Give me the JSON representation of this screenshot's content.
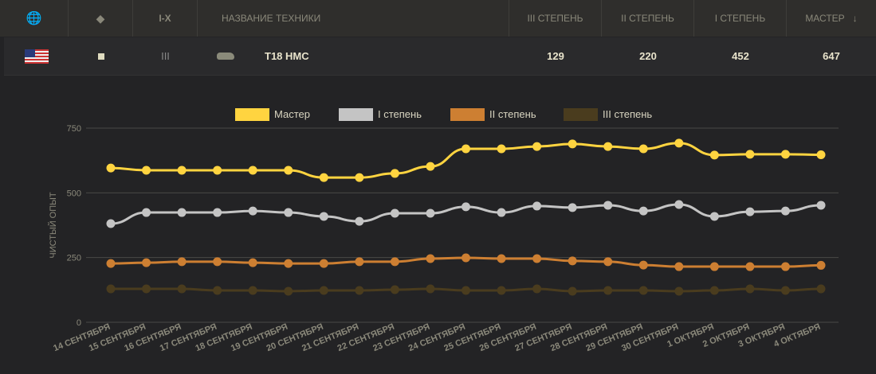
{
  "header": {
    "tier": "I-X",
    "name": "НАЗВАНИЕ ТЕХНИКИ",
    "c3": "III СТЕПЕНЬ",
    "c2": "II СТЕПЕНЬ",
    "c1": "I СТЕПЕНЬ",
    "master": "МАСТЕР",
    "sort_icon": "↓"
  },
  "vehicle": {
    "nation": "USA",
    "tier": "III",
    "name": "T18 HMC",
    "c3": "129",
    "c2": "220",
    "c1": "452",
    "master": "647"
  },
  "chart_data": {
    "type": "line",
    "ylabel": "ЧИСТЫЙ ОПЫТ",
    "ylim": [
      0,
      750
    ],
    "yticks": [
      0,
      250,
      500,
      750
    ],
    "grid": true,
    "legend": "top",
    "categories": [
      "14 СЕНТЯБРЯ",
      "15 СЕНТЯБРЯ",
      "16 СЕНТЯБРЯ",
      "17 СЕНТЯБРЯ",
      "18 СЕНТЯБРЯ",
      "19 СЕНТЯБРЯ",
      "20 СЕНТЯБРЯ",
      "21 СЕНТЯБРЯ",
      "22 СЕНТЯБРЯ",
      "23 СЕНТЯБРЯ",
      "24 СЕНТЯБРЯ",
      "25 СЕНТЯБРЯ",
      "26 СЕНТЯБРЯ",
      "27 СЕНТЯБРЯ",
      "28 СЕНТЯБРЯ",
      "29 СЕНТЯБРЯ",
      "30 СЕНТЯБРЯ",
      "1 ОКТЯБРЯ",
      "2 ОКТЯБРЯ",
      "3 ОКТЯБРЯ",
      "4 ОКТЯБРЯ"
    ],
    "series": [
      {
        "name": "Мастер",
        "color": "#ffd440",
        "values": [
          596,
          587,
          587,
          587,
          587,
          587,
          559,
          559,
          575,
          602,
          670,
          670,
          679,
          689,
          679,
          670,
          692,
          646,
          649,
          649,
          647
        ]
      },
      {
        "name": "I степень",
        "color": "#c4c4c4",
        "values": [
          381,
          424,
          424,
          424,
          430,
          424,
          409,
          390,
          421,
          421,
          446,
          424,
          449,
          443,
          452,
          430,
          455,
          409,
          427,
          430,
          452
        ]
      },
      {
        "name": "II степень",
        "color": "#cd7f32",
        "values": [
          227,
          230,
          234,
          234,
          230,
          227,
          227,
          234,
          234,
          246,
          249,
          246,
          246,
          237,
          234,
          221,
          215,
          215,
          215,
          215,
          220
        ]
      },
      {
        "name": "III степень",
        "color": "#4a3c1e",
        "values": [
          129,
          129,
          129,
          123,
          123,
          120,
          123,
          123,
          126,
          129,
          123,
          123,
          129,
          120,
          123,
          123,
          120,
          123,
          129,
          123,
          129
        ]
      }
    ]
  }
}
